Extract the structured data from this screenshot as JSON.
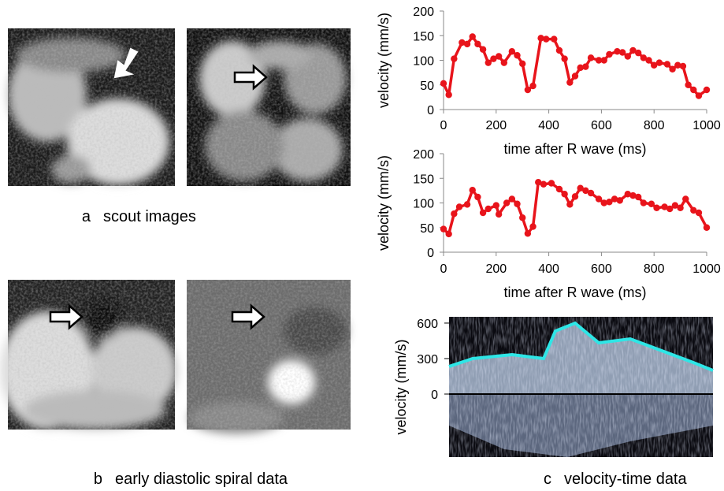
{
  "chart_data": [
    {
      "type": "line",
      "x_label": "time after R wave (ms)",
      "y_label": "velocity (mm/s)",
      "xlim": [
        0,
        1000
      ],
      "ylim": [
        0,
        200
      ],
      "xticks": [
        0,
        200,
        400,
        600,
        800,
        1000
      ],
      "yticks": [
        0,
        50,
        100,
        150,
        200
      ],
      "x": [
        0,
        20,
        40,
        70,
        90,
        110,
        130,
        150,
        170,
        190,
        210,
        230,
        260,
        280,
        300,
        320,
        340,
        370,
        390,
        420,
        440,
        460,
        480,
        500,
        520,
        540,
        560,
        590,
        610,
        630,
        660,
        680,
        700,
        720,
        740,
        760,
        780,
        800,
        820,
        850,
        870,
        890,
        910,
        930,
        950,
        970,
        1000
      ],
      "series": [
        {
          "color": "#e8141b",
          "values": [
            53,
            30,
            103,
            136,
            133,
            148,
            133,
            122,
            95,
            103,
            108,
            95,
            118,
            110,
            93,
            40,
            48,
            145,
            143,
            143,
            120,
            103,
            55,
            68,
            85,
            87,
            105,
            100,
            100,
            112,
            118,
            116,
            108,
            120,
            115,
            105,
            100,
            90,
            95,
            92,
            82,
            90,
            88,
            50,
            40,
            28,
            40
          ]
        }
      ]
    },
    {
      "type": "line",
      "x_label": "time after R wave (ms)",
      "y_label": "velocity (mm/s)",
      "xlim": [
        0,
        1000
      ],
      "ylim": [
        0,
        200
      ],
      "xticks": [
        0,
        200,
        400,
        600,
        800,
        1000
      ],
      "yticks": [
        0,
        50,
        100,
        150,
        200
      ],
      "x": [
        0,
        20,
        40,
        60,
        90,
        110,
        130,
        150,
        170,
        200,
        210,
        240,
        260,
        280,
        300,
        320,
        340,
        360,
        380,
        410,
        440,
        460,
        480,
        500,
        520,
        540,
        560,
        590,
        610,
        630,
        650,
        670,
        700,
        720,
        740,
        760,
        790,
        810,
        840,
        860,
        880,
        900,
        920,
        950,
        970,
        1000
      ],
      "series": [
        {
          "color": "#e8141b",
          "values": [
            47,
            37,
            78,
            92,
            97,
            126,
            112,
            80,
            88,
            95,
            77,
            100,
            108,
            98,
            70,
            38,
            52,
            142,
            138,
            140,
            128,
            118,
            97,
            113,
            130,
            125,
            120,
            108,
            100,
            102,
            108,
            105,
            118,
            115,
            112,
            100,
            98,
            90,
            92,
            88,
            95,
            90,
            108,
            85,
            80,
            50
          ]
        }
      ]
    },
    {
      "type": "spectrogram",
      "y_label": "velocity (mm/s)",
      "ylim": [
        -533,
        653
      ],
      "yticks": [
        0,
        300,
        600
      ]
    }
  ],
  "captions": [
    {
      "letter": "a",
      "text": "scout images"
    },
    {
      "letter": "b",
      "text": "early diastolic spiral data"
    },
    {
      "letter": "c",
      "text": "velocity-time  data"
    }
  ]
}
